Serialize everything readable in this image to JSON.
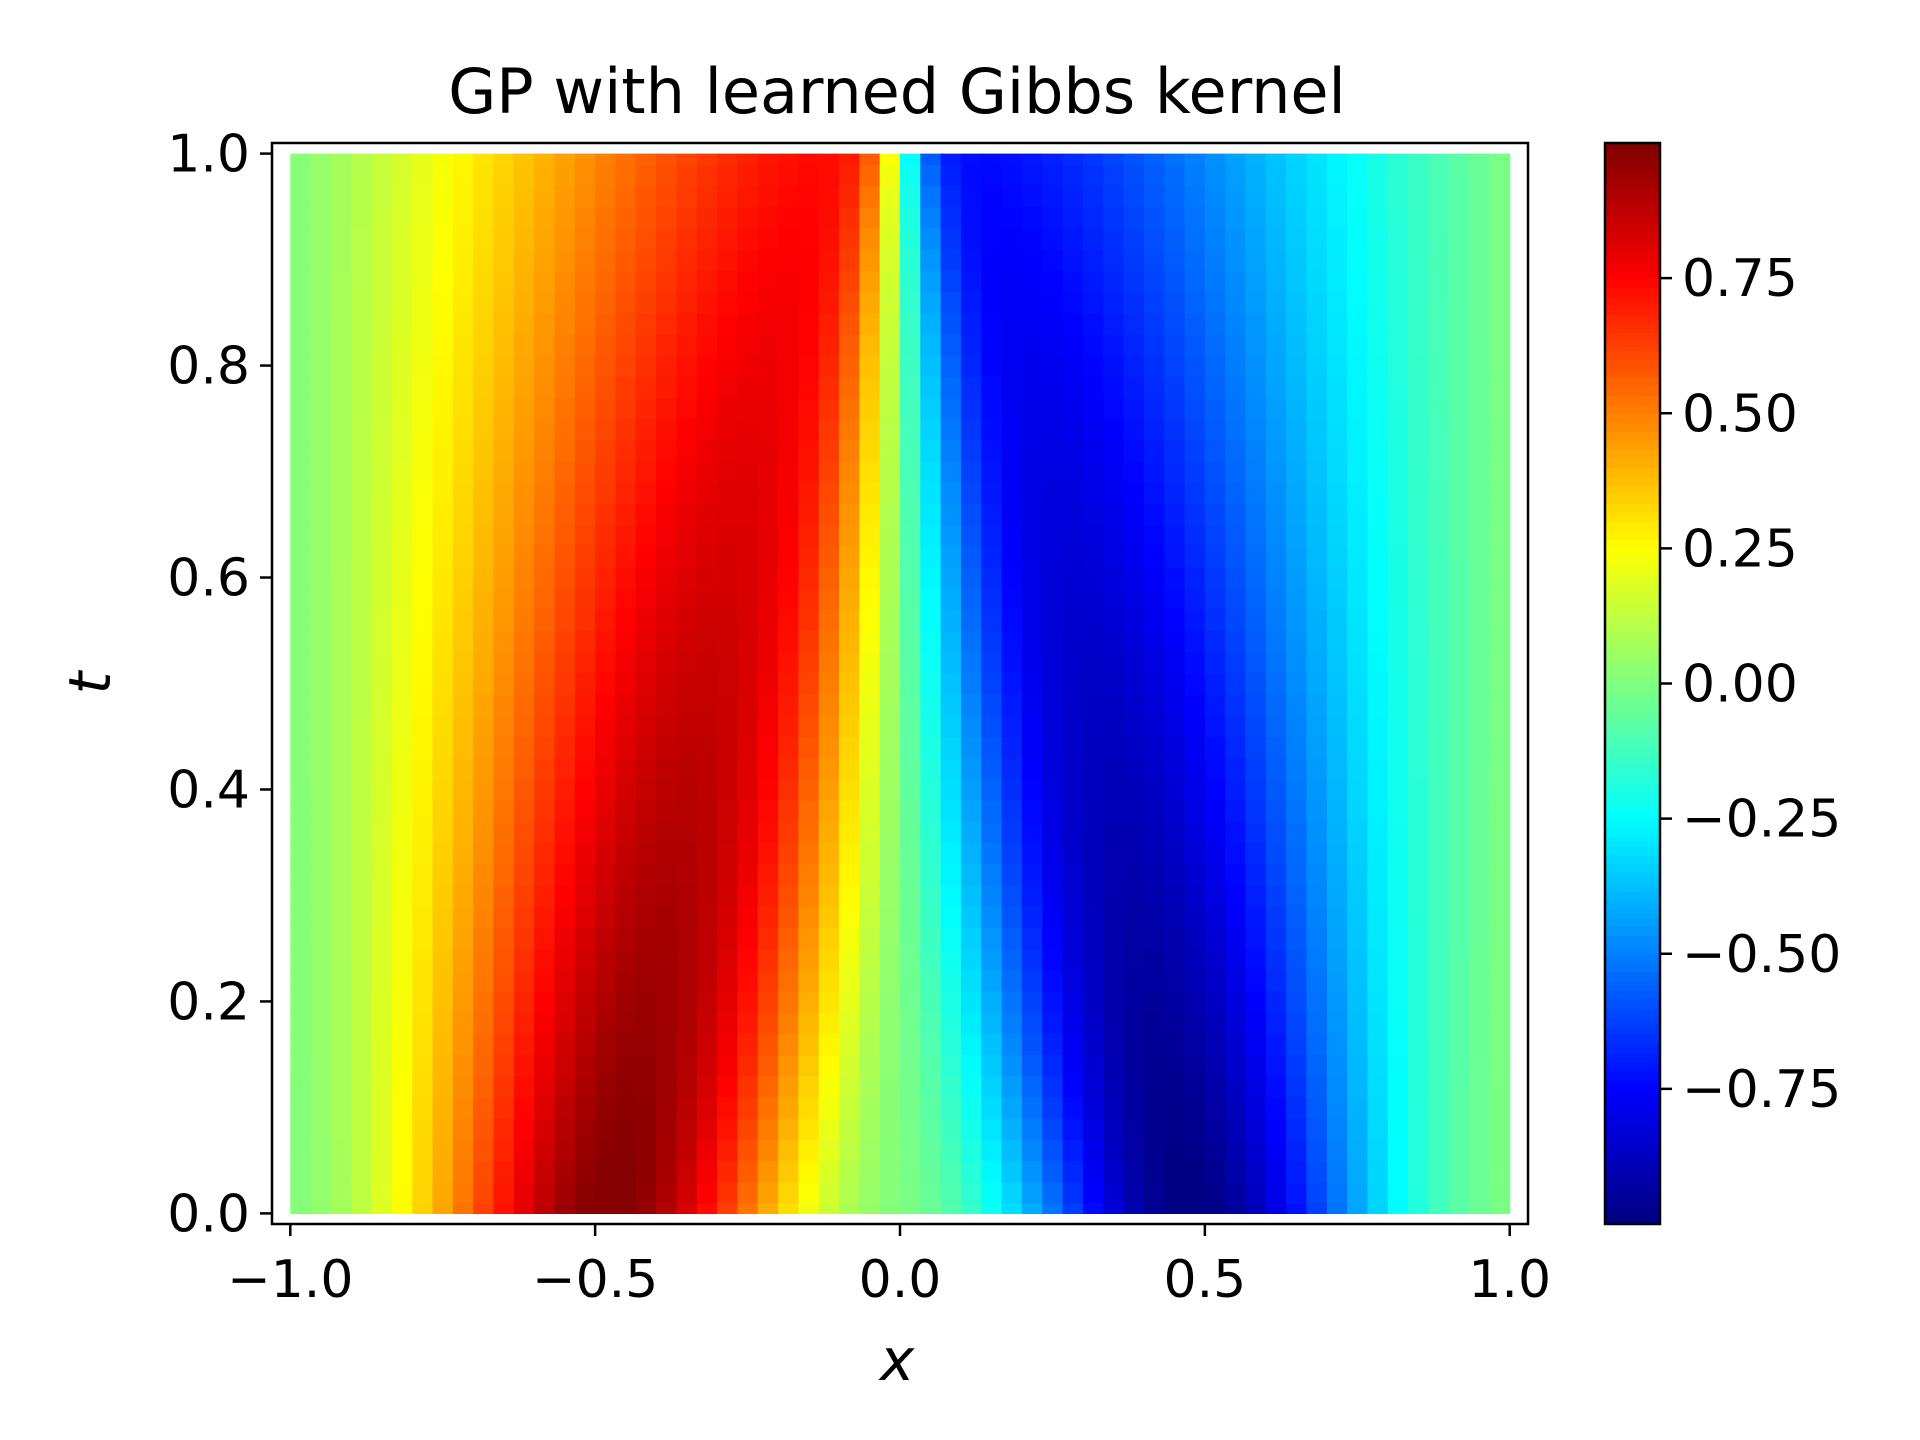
{
  "chart_data": {
    "type": "heatmap",
    "title": "GP with learned Gibbs kernel",
    "xlabel": "x",
    "ylabel": "t",
    "xlim": [
      -1.0,
      1.0
    ],
    "ylim": [
      0.0,
      1.0
    ],
    "x_ticks": [
      "−1.0",
      "−0.5",
      "0.0",
      "0.5",
      "1.0"
    ],
    "x_tick_values": [
      -1.0,
      -0.5,
      0.0,
      0.5,
      1.0
    ],
    "y_ticks": [
      "0.0",
      "0.2",
      "0.4",
      "0.6",
      "0.8",
      "1.0"
    ],
    "y_tick_values": [
      0.0,
      0.2,
      0.4,
      0.6,
      0.8,
      1.0
    ],
    "colormap": "jet",
    "colorbar": {
      "range": [
        -1.0,
        1.0
      ],
      "ticks": [
        "−0.75",
        "−0.50",
        "−0.25",
        "0.00",
        "0.25",
        "0.50",
        "0.75"
      ],
      "tick_values": [
        -0.75,
        -0.5,
        -0.25,
        0.0,
        0.25,
        0.5,
        0.75
      ]
    },
    "grid": false,
    "description_values": {
      "t": [
        0.0,
        0.1,
        0.2,
        0.3,
        0.4,
        0.5,
        0.6,
        0.7,
        0.8,
        0.9,
        1.0
      ],
      "x": [
        -1.0,
        -0.8,
        -0.6,
        -0.5,
        -0.4,
        -0.2,
        -0.05,
        0.0,
        0.05,
        0.2,
        0.4,
        0.5,
        0.6,
        0.8,
        1.0
      ],
      "u_at_t0": [
        0.0,
        0.45,
        0.85,
        0.98,
        0.98,
        0.7,
        0.25,
        0.0,
        -0.25,
        -0.7,
        -0.98,
        -0.98,
        -0.85,
        -0.45,
        0.0
      ],
      "u_at_t1": [
        0.0,
        0.2,
        0.5,
        0.6,
        0.68,
        0.78,
        0.8,
        0.0,
        -0.8,
        -0.78,
        -0.68,
        -0.6,
        -0.5,
        -0.2,
        0.0
      ]
    }
  }
}
